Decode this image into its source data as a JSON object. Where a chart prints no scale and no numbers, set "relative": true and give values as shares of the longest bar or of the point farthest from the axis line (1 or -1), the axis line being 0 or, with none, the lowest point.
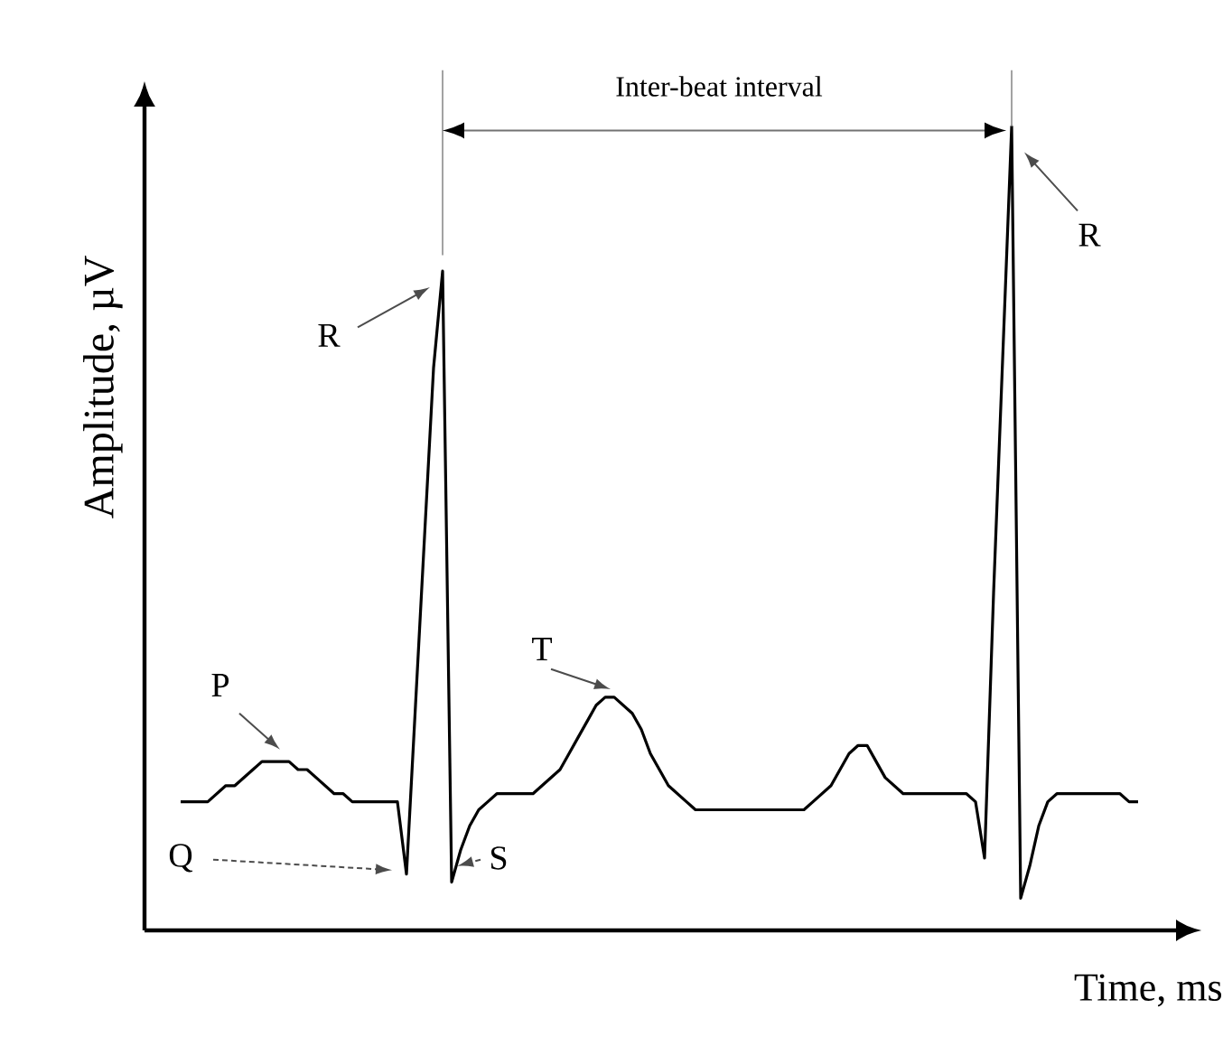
{
  "chart_data": {
    "type": "line",
    "relative": true,
    "xlabel": "Time, ms",
    "ylabel": "Amplitude, µV",
    "color": "#000000",
    "categories": [
      null,
      null,
      null,
      null,
      null,
      null,
      null,
      null,
      null,
      null,
      null,
      null,
      null,
      null,
      null,
      null,
      null,
      null,
      null,
      null,
      null,
      null,
      null,
      null,
      null,
      null,
      null,
      null,
      null,
      null,
      null,
      null,
      null,
      null,
      null,
      null,
      null,
      null,
      null,
      null,
      null,
      null,
      null,
      null,
      null,
      null,
      null,
      null,
      null,
      null,
      null,
      null,
      null,
      null,
      null,
      null,
      null,
      null,
      null,
      null,
      null,
      null,
      null,
      null,
      null,
      null,
      null,
      null,
      null,
      null,
      null,
      null,
      null,
      null,
      null,
      null,
      null,
      null,
      null,
      null,
      null,
      null,
      null,
      null,
      null,
      null,
      null,
      null,
      null,
      null,
      null,
      null,
      null,
      null,
      null,
      null,
      null,
      null,
      null,
      null,
      null,
      null,
      null,
      null,
      null,
      null,
      null
    ],
    "values": [
      0.16,
      0.16,
      0.16,
      0.16,
      0.17,
      0.18,
      0.18,
      0.19,
      0.2,
      0.21,
      0.21,
      0.21,
      0.21,
      0.2,
      0.2,
      0.19,
      0.18,
      0.17,
      0.17,
      0.16,
      0.16,
      0.16,
      0.16,
      0.16,
      0.16,
      0.07,
      0.28,
      0.49,
      0.7,
      0.82,
      0.06,
      0.1,
      0.13,
      0.15,
      0.16,
      0.17,
      0.17,
      0.17,
      0.17,
      0.17,
      0.18,
      0.19,
      0.2,
      0.22,
      0.24,
      0.26,
      0.28,
      0.29,
      0.29,
      0.28,
      0.27,
      0.25,
      0.22,
      0.2,
      0.18,
      0.17,
      0.16,
      0.15,
      0.15,
      0.15,
      0.15,
      0.15,
      0.15,
      0.15,
      0.15,
      0.15,
      0.15,
      0.15,
      0.15,
      0.15,
      0.16,
      0.17,
      0.18,
      0.2,
      0.22,
      0.23,
      0.23,
      0.21,
      0.19,
      0.18,
      0.17,
      0.17,
      0.17,
      0.17,
      0.17,
      0.17,
      0.17,
      0.17,
      0.16,
      0.09,
      0.42,
      0.71,
      1,
      0.04,
      0.08,
      0.13,
      0.16,
      0.17,
      0.17,
      0.17,
      0.17,
      0.17,
      0.17,
      0.17,
      0.17,
      0.16,
      0.16
    ],
    "annotations": [
      "P",
      "Q",
      "R",
      "S",
      "T",
      "R",
      "Inter-beat interval"
    ]
  }
}
